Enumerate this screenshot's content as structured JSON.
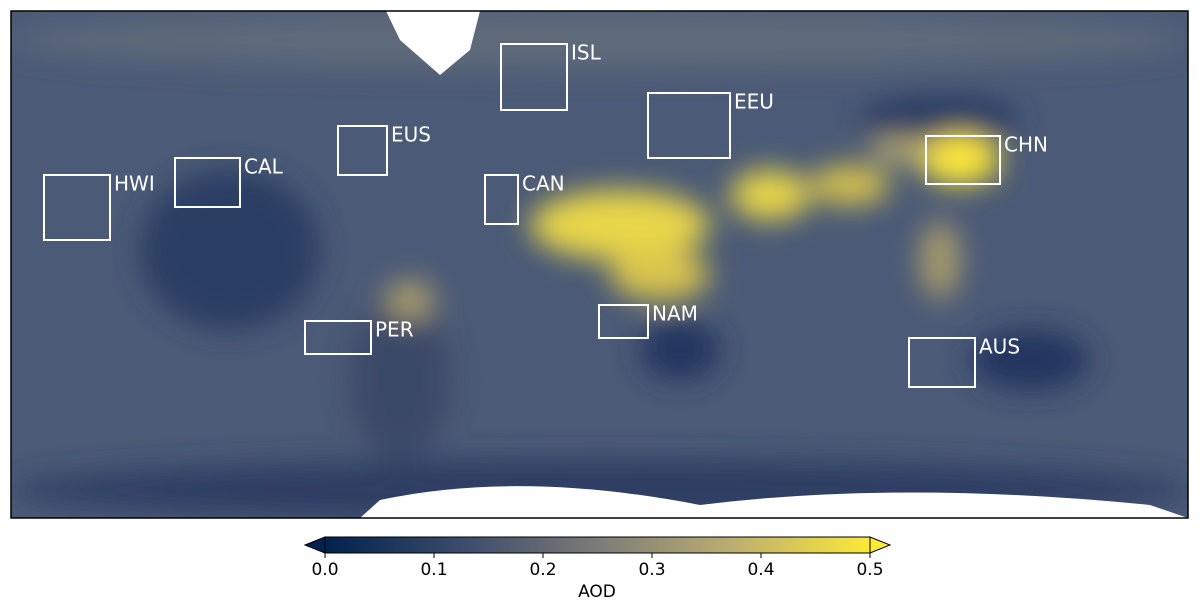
{
  "map": {
    "regions": [
      {
        "label": "ISL"
      },
      {
        "label": "EEU"
      },
      {
        "label": "EUS"
      },
      {
        "label": "CHN"
      },
      {
        "label": "CAL"
      },
      {
        "label": "HWI"
      },
      {
        "label": "CAN"
      },
      {
        "label": "PER"
      },
      {
        "label": "NAM"
      },
      {
        "label": "AUS"
      }
    ],
    "colorbar": {
      "label": "AOD",
      "vlim": [
        0,
        0.5
      ],
      "ticks": [
        {
          "value": 0,
          "label": "0.0"
        },
        0.1,
        0.2,
        0.3,
        0.4,
        0.5
      ]
    }
  }
}
